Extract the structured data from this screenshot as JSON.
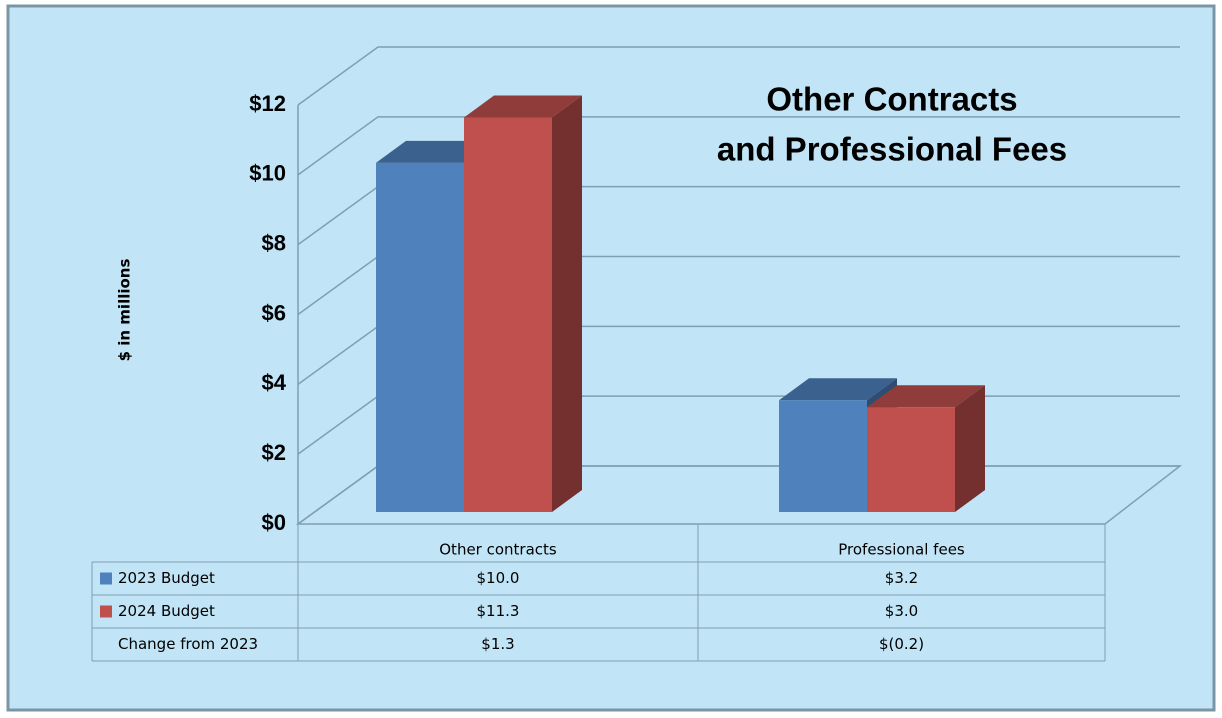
{
  "chart_data": {
    "type": "bar3d",
    "title": [
      "Other Contracts",
      "and Professional Fees"
    ],
    "ylabel": "$ in millions",
    "categories": [
      "Other contracts",
      "Professional fees"
    ],
    "series": [
      {
        "name": "2023 Budget",
        "color": "#4f81bd",
        "values": [
          10.0,
          3.2
        ],
        "value_labels": [
          "$10.0",
          "$3.2"
        ]
      },
      {
        "name": "2024 Budget",
        "color": "#c0504d",
        "values": [
          11.3,
          3.0
        ],
        "value_labels": [
          "$11.3",
          "$3.0"
        ]
      }
    ],
    "change": {
      "name": "Change from 2023",
      "values": [
        1.3,
        -0.2
      ],
      "value_labels": [
        "$1.3",
        "$(0.2)"
      ]
    },
    "ylim": [
      0,
      12
    ],
    "yticks": [
      {
        "value": 0,
        "label": "$0"
      },
      {
        "value": 2,
        "label": "$2"
      },
      {
        "value": 4,
        "label": "$4"
      },
      {
        "value": 6,
        "label": "$6"
      },
      {
        "value": 8,
        "label": "$8"
      },
      {
        "value": 10,
        "label": "$10"
      },
      {
        "value": 12,
        "label": "$12"
      }
    ],
    "grid": true
  }
}
